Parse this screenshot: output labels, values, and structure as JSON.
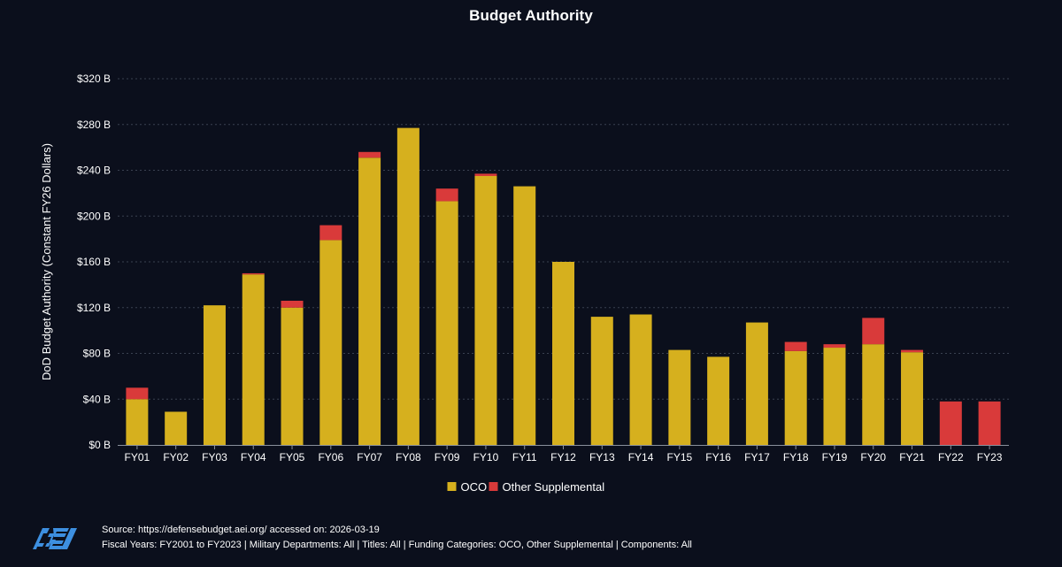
{
  "title": "Budget Authority",
  "chart_data": {
    "type": "bar",
    "stacked": true,
    "title": "Budget Authority",
    "xlabel": "",
    "ylabel": "DoD Budget Authority (Constant FY26 Dollars)",
    "ylim": [
      0,
      320
    ],
    "ytick_values": [
      0,
      40,
      80,
      120,
      160,
      200,
      240,
      280,
      320
    ],
    "ytick_labels": [
      "$0 B",
      "$40 B",
      "$80 B",
      "$120 B",
      "$160 B",
      "$200 B",
      "$240 B",
      "$280 B",
      "$320 B"
    ],
    "grid": true,
    "legend_position": "bottom-center",
    "categories": [
      "FY01",
      "FY02",
      "FY03",
      "FY04",
      "FY05",
      "FY06",
      "FY07",
      "FY08",
      "FY09",
      "FY10",
      "FY11",
      "FY12",
      "FY13",
      "FY14",
      "FY15",
      "FY16",
      "FY17",
      "FY18",
      "FY19",
      "FY20",
      "FY21",
      "FY22",
      "FY23"
    ],
    "series": [
      {
        "name": "OCO",
        "color": "#d6b01e",
        "values": [
          40,
          29,
          122,
          149,
          120,
          179,
          251,
          277,
          213,
          235,
          226,
          160,
          112,
          114,
          83,
          77,
          107,
          82,
          85,
          88,
          81,
          0,
          0
        ]
      },
      {
        "name": "Other Supplemental",
        "color": "#d93a3a",
        "values": [
          10,
          0,
          0,
          1,
          6,
          13,
          5,
          0,
          11,
          2,
          0,
          0,
          0,
          0,
          0,
          0,
          0,
          8,
          3,
          23,
          2,
          38,
          38
        ]
      }
    ]
  },
  "footer": {
    "logo_text": "AEI",
    "source": "Source: https://defensebudget.aei.org/ accessed on: 2026-03-19",
    "filters": "Fiscal Years: FY2001 to FY2023 | Military Departments: All | Titles: All | Funding Categories: OCO, Other Supplemental | Components: All"
  },
  "colors": {
    "background": "#0b0f1c",
    "gridline": "#3a4150",
    "axis": "#8a909c",
    "text": "#ffffff"
  }
}
